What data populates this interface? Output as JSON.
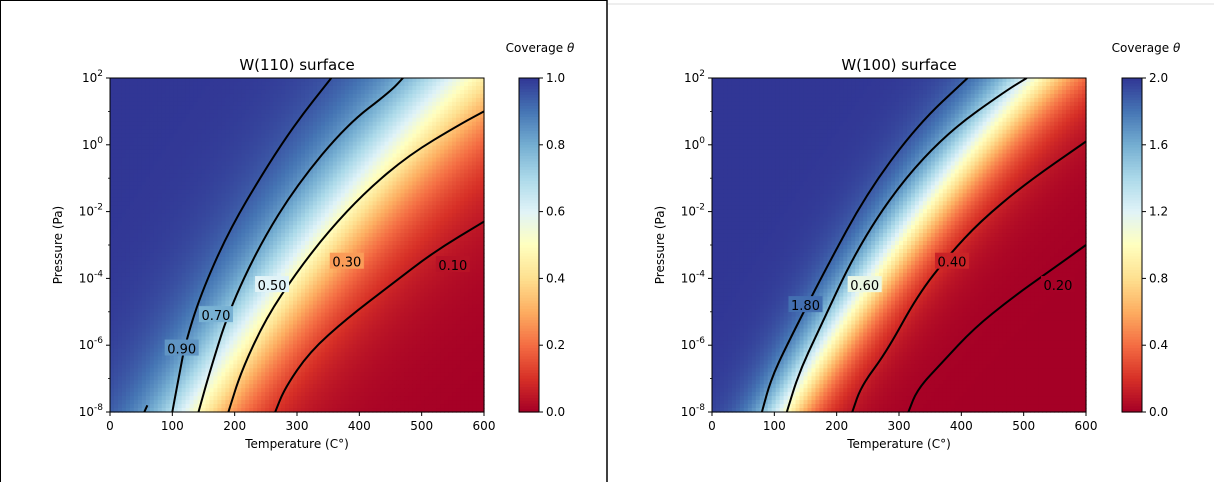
{
  "chart_data": [
    {
      "type": "heatmap",
      "title": "W(110) surface",
      "xlabel": "Temperature (C°)",
      "ylabel": "Pressure (Pa)",
      "xlim": [
        0,
        600
      ],
      "ylim_log10": [
        -8,
        2
      ],
      "yscale": "log",
      "x_ticks": [
        "0",
        "100",
        "200",
        "300",
        "400",
        "500",
        "600"
      ],
      "y_ticks": [
        "10-8",
        "10-6",
        "10-4",
        "10-2",
        "100",
        "102"
      ],
      "colorbar": {
        "label": "Coverage θ",
        "range": [
          0,
          1.0
        ],
        "ticks": [
          "0.0",
          "0.2",
          "0.4",
          "0.6",
          "0.8",
          "1.0"
        ],
        "colormap": "RdYlBu"
      },
      "contours": [
        {
          "level": 0.9,
          "label": "0.90",
          "points": [
            [
              55,
              -8
            ],
            [
              60,
              -7.8
            ]
          ]
        },
        {
          "level": 0.7,
          "label": "0.70",
          "points": [
            [
              100,
              -8
            ],
            [
              110,
              -7.0
            ],
            [
              120,
              -6.0
            ],
            [
              145,
              -4.5
            ],
            [
              190,
              -2.6
            ],
            [
              250,
              -0.7
            ],
            [
              300,
              0.7
            ],
            [
              355,
              2.0
            ]
          ]
        },
        {
          "level": 0.5,
          "label": "0.50",
          "points": [
            [
              142,
              -8
            ],
            [
              160,
              -6.8
            ],
            [
              190,
              -5.0
            ],
            [
              240,
              -3.0
            ],
            [
              300,
              -1.2
            ],
            [
              380,
              0.6
            ],
            [
              450,
              1.6
            ],
            [
              470,
              2.0
            ]
          ]
        },
        {
          "level": 0.3,
          "label": "0.30",
          "points": [
            [
              190,
              -8
            ],
            [
              210,
              -6.8
            ],
            [
              250,
              -5.2
            ],
            [
              300,
              -3.8
            ],
            [
              350,
              -2.6
            ],
            [
              410,
              -1.4
            ],
            [
              480,
              -0.3
            ],
            [
              560,
              0.6
            ],
            [
              600,
              1.0
            ]
          ]
        },
        {
          "level": 0.1,
          "label": "0.10",
          "points": [
            [
              265,
              -8
            ],
            [
              280,
              -7.3
            ],
            [
              320,
              -6.2
            ],
            [
              380,
              -5.2
            ],
            [
              450,
              -4.2
            ],
            [
              520,
              -3.2
            ],
            [
              600,
              -2.3
            ]
          ]
        }
      ]
    },
    {
      "type": "heatmap",
      "title": "W(100) surface",
      "xlabel": "Temperature (C°)",
      "ylabel": "Pressure (Pa)",
      "xlim": [
        0,
        600
      ],
      "ylim_log10": [
        -8,
        2
      ],
      "yscale": "log",
      "x_ticks": [
        "0",
        "100",
        "200",
        "300",
        "400",
        "500",
        "600"
      ],
      "y_ticks": [
        "10-8",
        "10-6",
        "10-4",
        "10-2",
        "100",
        "102"
      ],
      "colorbar": {
        "label": "Coverage θ",
        "range": [
          0,
          2.0
        ],
        "ticks": [
          "0.0",
          "0.4",
          "0.8",
          "1.2",
          "1.6",
          "2.0"
        ],
        "colormap": "RdYlBu"
      },
      "contours": [
        {
          "level": 1.8,
          "label": "1.80",
          "points": [
            [
              80,
              -8
            ],
            [
              95,
              -7.0
            ],
            [
              120,
              -6.0
            ],
            [
              180,
              -3.8
            ],
            [
              250,
              -1.4
            ],
            [
              330,
              0.6
            ],
            [
              410,
              2.0
            ]
          ]
        },
        {
          "level": 0.6,
          "label": "0.60",
          "points": [
            [
              120,
              -8
            ],
            [
              140,
              -6.8
            ],
            [
              170,
              -5.6
            ],
            [
              230,
              -3.2
            ],
            [
              300,
              -1.2
            ],
            [
              380,
              0.4
            ],
            [
              470,
              1.6
            ],
            [
              505,
              2.0
            ]
          ]
        },
        {
          "level": 0.4,
          "label": "0.40",
          "points": [
            [
              225,
              -8
            ],
            [
              240,
              -7.2
            ],
            [
              280,
              -6.2
            ],
            [
              330,
              -4.5
            ],
            [
              380,
              -3.3
            ],
            [
              430,
              -2.3
            ],
            [
              500,
              -1.2
            ],
            [
              600,
              0.1
            ]
          ]
        },
        {
          "level": 0.2,
          "label": "0.20",
          "points": [
            [
              315,
              -8
            ],
            [
              330,
              -7.3
            ],
            [
              370,
              -6.5
            ],
            [
              420,
              -5.5
            ],
            [
              480,
              -4.6
            ],
            [
              540,
              -3.8
            ],
            [
              600,
              -3.0
            ]
          ]
        }
      ]
    }
  ]
}
